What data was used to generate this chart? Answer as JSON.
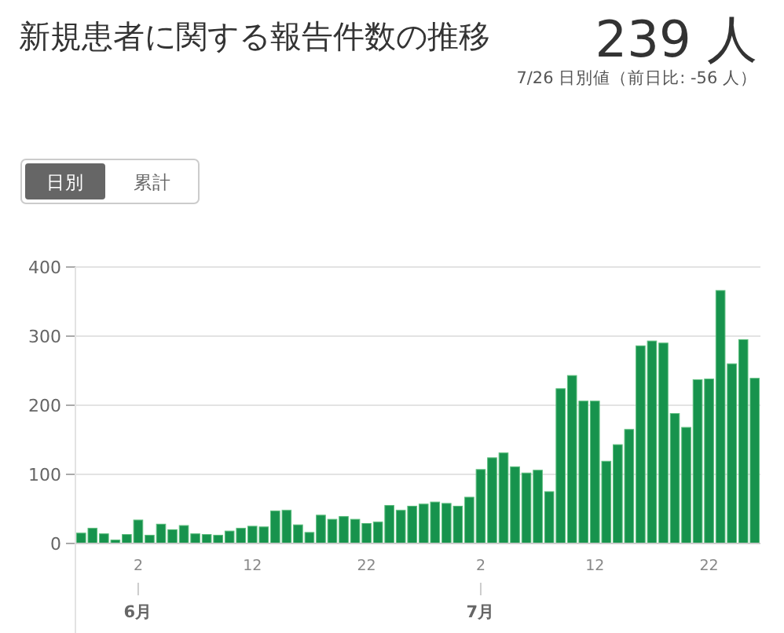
{
  "chart_data": {
    "type": "bar",
    "title": "新規患者に関する報告件数の推移",
    "subtitle": "7/26 日別値（前日比: -56 人）",
    "annotations": [
      "239 人",
      "日別",
      "累計",
      "6月",
      "7月"
    ],
    "categories": [
      null,
      null,
      null,
      null,
      null,
      "2",
      null,
      null,
      null,
      null,
      null,
      null,
      null,
      null,
      null,
      "12",
      null,
      null,
      null,
      null,
      null,
      null,
      null,
      null,
      null,
      "22",
      null,
      null,
      null,
      null,
      null,
      null,
      null,
      null,
      null,
      "2",
      null,
      null,
      null,
      null,
      null,
      null,
      null,
      null,
      null,
      "12",
      null,
      null,
      null,
      null,
      null,
      null,
      null,
      null,
      null,
      "22",
      null,
      null,
      null,
      null
    ],
    "values": [
      15,
      22,
      14,
      5,
      13,
      34,
      12,
      28,
      20,
      26,
      14,
      13,
      12,
      18,
      22,
      25,
      24,
      47,
      48,
      27,
      16,
      41,
      35,
      39,
      35,
      29,
      31,
      55,
      48,
      54,
      57,
      60,
      58,
      54,
      67,
      107,
      124,
      131,
      111,
      102,
      106,
      75,
      224,
      243,
      206,
      206,
      119,
      143,
      165,
      286,
      293,
      290,
      188,
      168,
      237,
      238,
      366,
      260,
      295,
      239
    ],
    "color": "#17934d",
    "ylim": [
      0,
      400
    ],
    "yticks": [
      0,
      100,
      200,
      300,
      400
    ],
    "grid": "y"
  }
}
